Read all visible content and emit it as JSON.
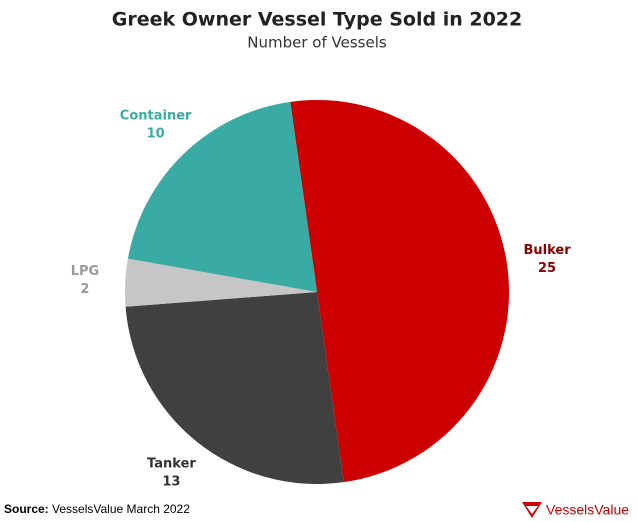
{
  "chart_data": {
    "type": "pie",
    "title": "Greek Owner Vessel Type Sold in 2022",
    "subtitle": "Number of Vessels",
    "categories": [
      "Bulker",
      "Tanker",
      "LPG",
      "Container"
    ],
    "values": [
      25,
      13,
      2,
      10
    ],
    "colors": [
      "#cc0000",
      "#404040",
      "#c6c6c6",
      "#3aaba4"
    ],
    "label_colors": [
      "#8b0000",
      "#333333",
      "#999999",
      "#3aaba4"
    ],
    "source_label": "Source:",
    "source": "VesselsValue March 2022",
    "logo": "VesselsValue"
  }
}
